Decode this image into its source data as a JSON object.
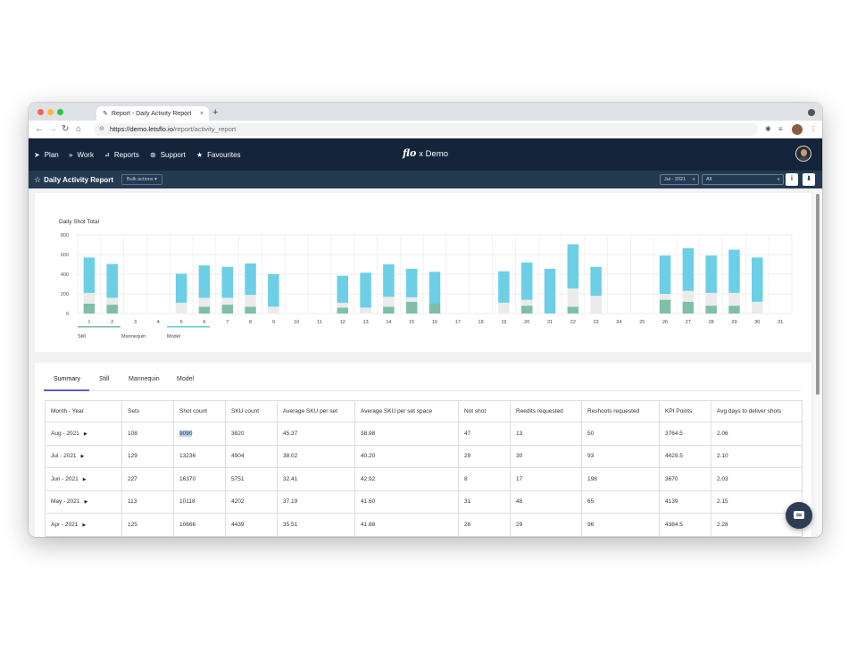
{
  "browser": {
    "tab_title": "Report - Daily Activity Report",
    "tab_close": "×",
    "new_tab": "+",
    "url_host": "https://demo.letsflo.io",
    "url_path": "/report/activity_report"
  },
  "nav": {
    "items": [
      {
        "icon": "paper-plane-icon",
        "glyph": "➤",
        "label": "Plan"
      },
      {
        "icon": "double-chevron-icon",
        "glyph": "»",
        "label": "Work"
      },
      {
        "icon": "chart-icon",
        "glyph": "📈",
        "label": "Reports"
      },
      {
        "icon": "support-icon",
        "glyph": "⊛",
        "label": "Support"
      },
      {
        "icon": "star-icon",
        "glyph": "★",
        "label": "Favourites"
      }
    ],
    "brand_logo": "flo",
    "brand_suffix": "x Demo"
  },
  "subbar": {
    "title": "Daily Activity Report",
    "bulk_actions": "Bulk actions ▾",
    "month_select": "Jul - 2021",
    "filter_select": "All",
    "info_label": "i",
    "download_label": "⬇"
  },
  "chart_data": {
    "type": "bar",
    "stacked": true,
    "title": "Daily Shot Total",
    "ylim": [
      0,
      800
    ],
    "yticks": [
      0,
      200,
      400,
      600,
      800
    ],
    "grid": true,
    "categories": [
      "1",
      "2",
      "3",
      "4",
      "5",
      "6",
      "7",
      "8",
      "9",
      "10",
      "11",
      "12",
      "13",
      "14",
      "15",
      "16",
      "17",
      "18",
      "19",
      "20",
      "21",
      "22",
      "23",
      "24",
      "25",
      "26",
      "27",
      "28",
      "29",
      "30",
      "31"
    ],
    "series": [
      {
        "name": "Still",
        "color": "#7fbfa6",
        "values": [
          100,
          90,
          0,
          0,
          0,
          70,
          90,
          70,
          0,
          0,
          0,
          60,
          0,
          70,
          120,
          100,
          0,
          0,
          0,
          80,
          0,
          70,
          0,
          0,
          0,
          140,
          120,
          80,
          80,
          0,
          0
        ]
      },
      {
        "name": "Mannequin",
        "color": "#ebebeb",
        "values": [
          110,
          70,
          0,
          0,
          110,
          90,
          70,
          120,
          70,
          0,
          0,
          50,
          60,
          100,
          45,
          0,
          0,
          0,
          110,
          60,
          0,
          185,
          180,
          0,
          0,
          60,
          110,
          130,
          130,
          120,
          0
        ]
      },
      {
        "name": "Model",
        "color": "#6ccfe6",
        "values": [
          360,
          345,
          0,
          0,
          295,
          330,
          315,
          320,
          330,
          0,
          0,
          275,
          355,
          330,
          290,
          325,
          0,
          0,
          320,
          380,
          455,
          450,
          295,
          0,
          0,
          390,
          435,
          380,
          440,
          450,
          0
        ]
      }
    ],
    "legend": {
      "position": "bottom-left"
    }
  },
  "summary": {
    "tabs": [
      "Summary",
      "Still",
      "Mannequin",
      "Model"
    ],
    "columns": [
      "Month - Year",
      "Sets",
      "Shot count",
      "SKU count",
      "Average SKU per set",
      "Average SKU per set space",
      "Not shot",
      "Reedits requested",
      "Reshoots requested",
      "KPI Points",
      "Avg days to deliver shots"
    ],
    "rows": [
      [
        "Aug - 2021",
        "108",
        "9090",
        "3820",
        "45.37",
        "38.98",
        "47",
        "13",
        "50",
        "3764.5",
        "2.06"
      ],
      [
        "Jul - 2021",
        "129",
        "13236",
        "4904",
        "38.02",
        "40.20",
        "29",
        "30",
        "93",
        "4429.5",
        "2.10"
      ],
      [
        "Jun - 2021",
        "227",
        "16370",
        "5751",
        "32.41",
        "42.92",
        "8",
        "17",
        "198",
        "3670",
        "2.03"
      ],
      [
        "May - 2021",
        "113",
        "10118",
        "4202",
        "37.19",
        "41.60",
        "31",
        "48",
        "65",
        "4139",
        "2.15"
      ],
      [
        "Apr - 2021",
        "125",
        "10666",
        "4439",
        "35.51",
        "41.88",
        "28",
        "29",
        "96",
        "4384.5",
        "2.28"
      ]
    ]
  },
  "colors": {
    "nav_bg": "#14243b",
    "subbar_bg": "#233a52",
    "accent_tab": "#5b5dc9"
  }
}
